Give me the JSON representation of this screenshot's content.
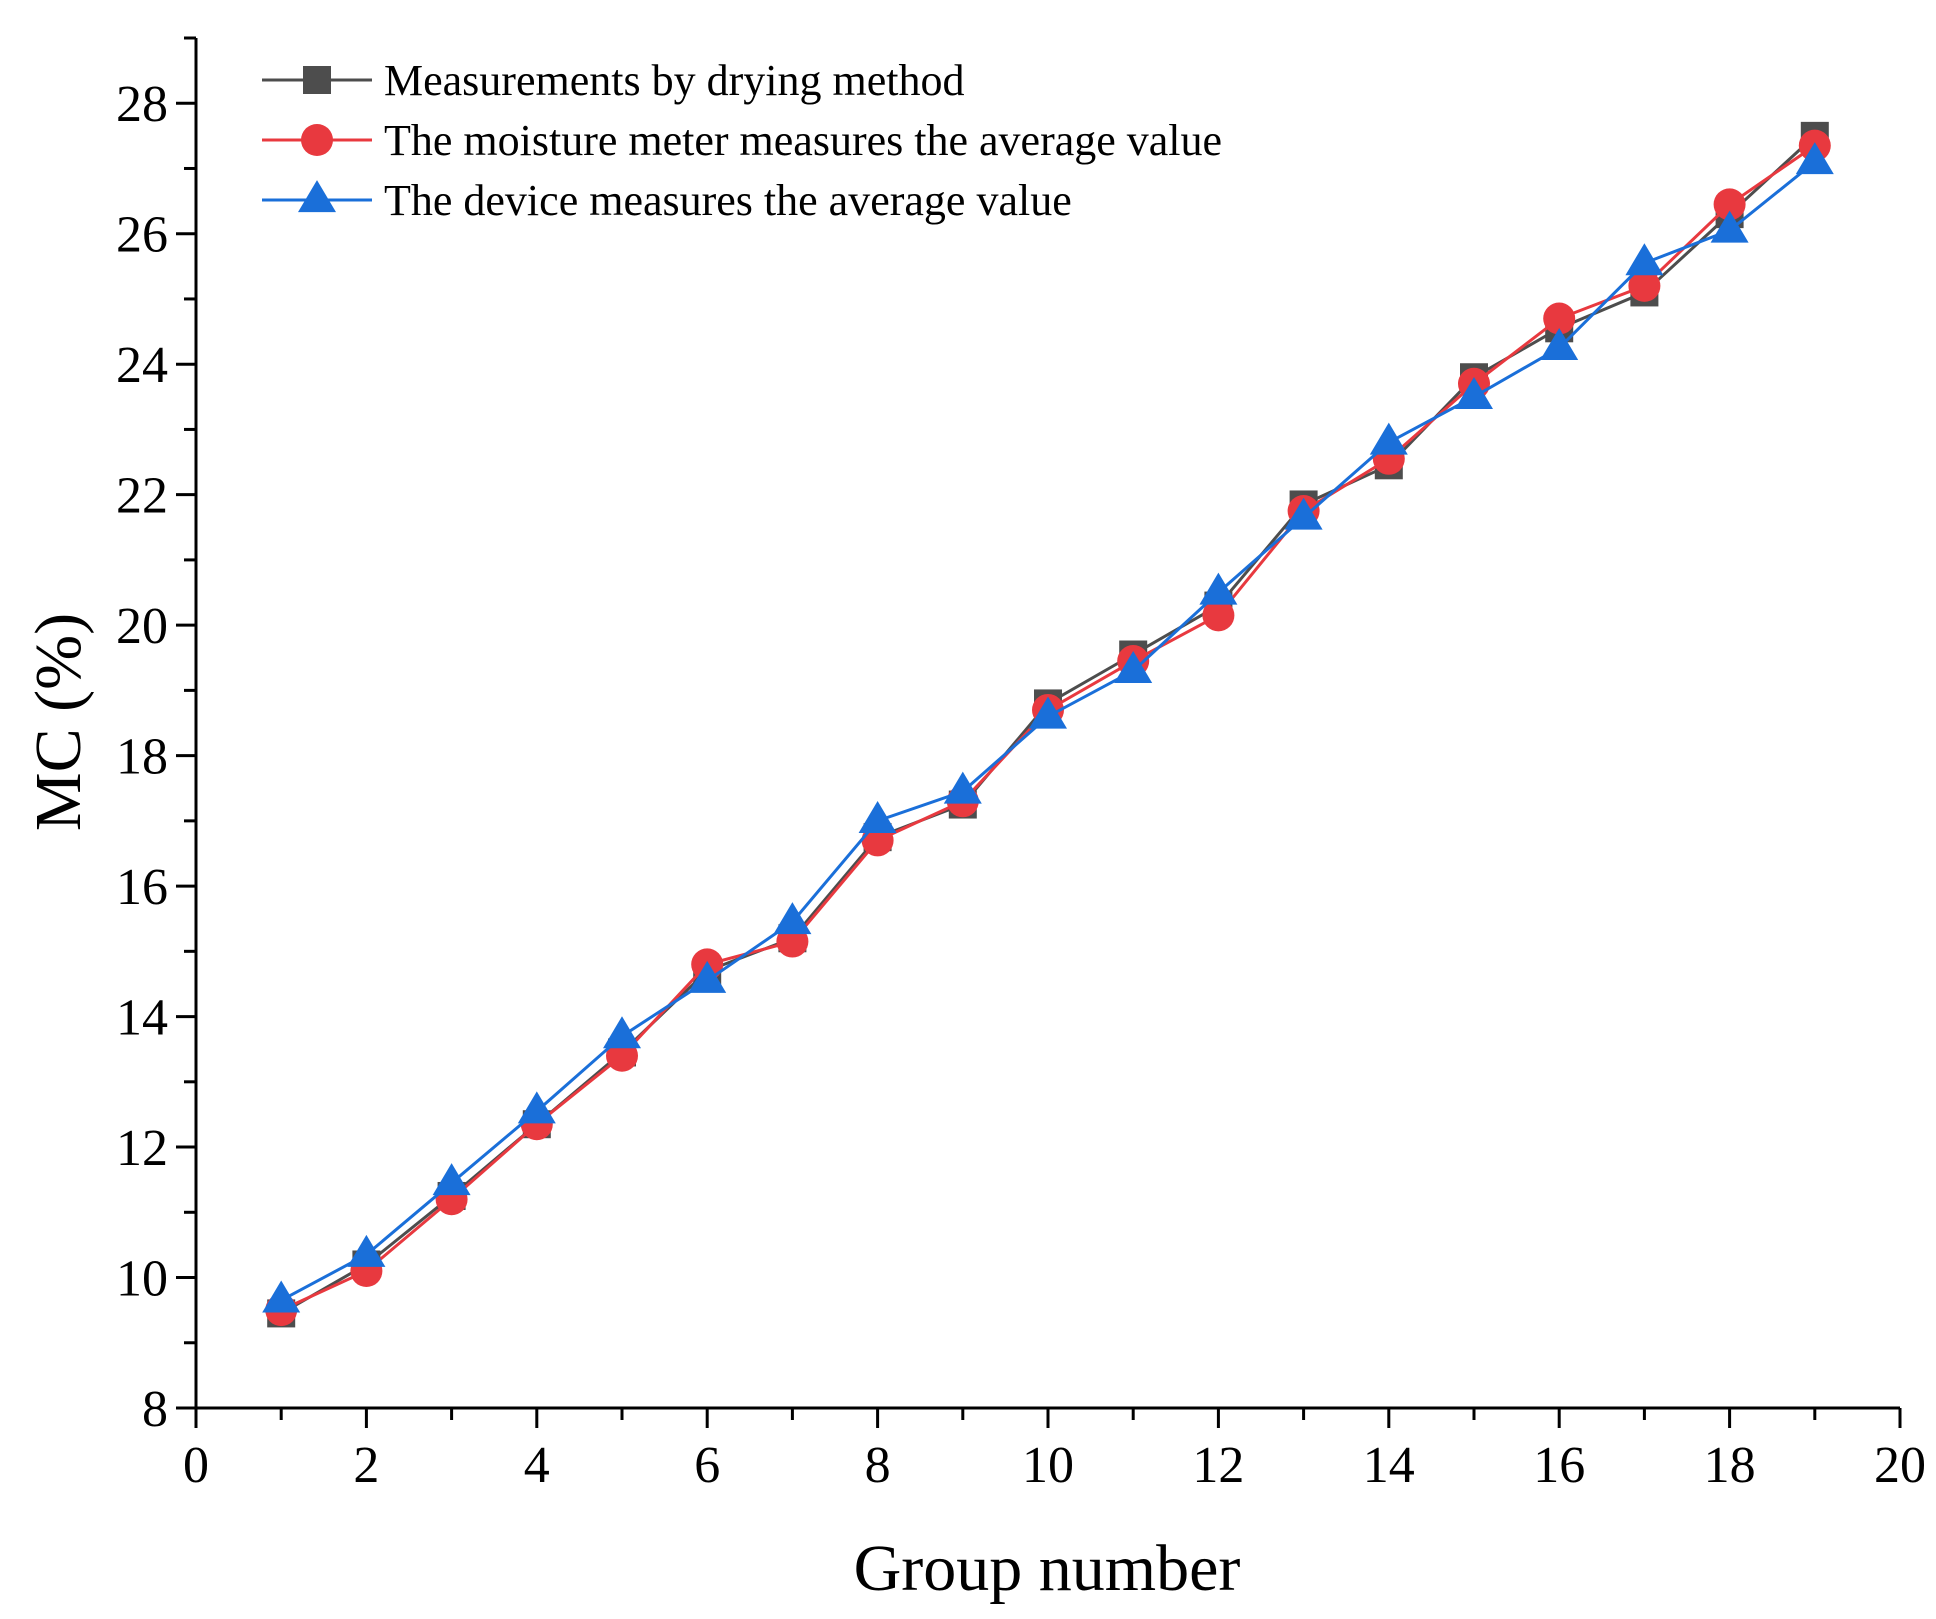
{
  "chart_data": {
    "type": "line",
    "xlabel": "Group number",
    "ylabel": "MC (%)",
    "xlim": [
      0,
      20
    ],
    "ylim": [
      8,
      29
    ],
    "x_ticks": [
      0,
      2,
      4,
      6,
      8,
      10,
      12,
      14,
      16,
      18,
      20
    ],
    "y_ticks": [
      8,
      10,
      12,
      14,
      16,
      18,
      20,
      22,
      24,
      26,
      28
    ],
    "grid": false,
    "legend_position": "top-left",
    "x": [
      1,
      2,
      3,
      4,
      5,
      6,
      7,
      8,
      9,
      10,
      11,
      12,
      13,
      14,
      15,
      16,
      17,
      18,
      19
    ],
    "series": [
      {
        "name": "Measurements by drying method",
        "marker": "square",
        "color": "#4d4d4d",
        "values": [
          9.45,
          10.2,
          11.25,
          12.35,
          13.45,
          14.7,
          15.2,
          16.75,
          17.25,
          18.8,
          19.55,
          20.3,
          21.85,
          22.45,
          23.8,
          24.55,
          25.1,
          26.3,
          27.5
        ]
      },
      {
        "name": "The moisture meter measures the average value",
        "marker": "circle",
        "color": "#e8393f",
        "values": [
          9.5,
          10.1,
          11.2,
          12.35,
          13.4,
          14.8,
          15.15,
          16.7,
          17.3,
          18.7,
          19.45,
          20.15,
          21.75,
          22.55,
          23.7,
          24.7,
          25.2,
          26.45,
          27.35
        ]
      },
      {
        "name": "The device measures the average value",
        "marker": "triangle",
        "color": "#1a6fd9",
        "values": [
          9.65,
          10.35,
          11.45,
          12.55,
          13.7,
          14.55,
          15.45,
          17.0,
          17.45,
          18.6,
          19.3,
          20.5,
          21.65,
          22.8,
          23.5,
          24.25,
          25.55,
          26.05,
          27.1
        ]
      }
    ]
  }
}
